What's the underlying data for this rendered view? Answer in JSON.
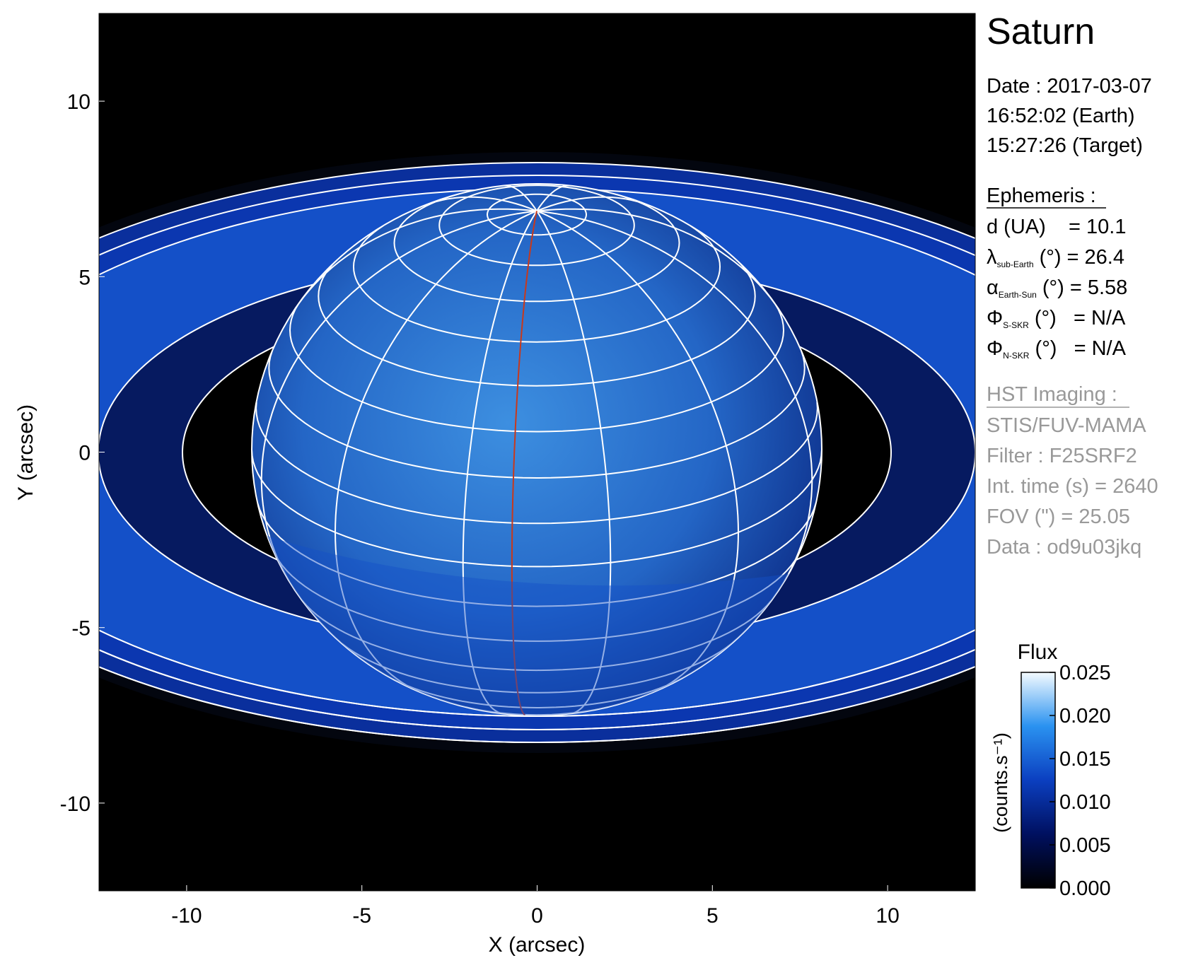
{
  "chart_data": {
    "type": "image",
    "xlabel": "X (arcsec)",
    "ylabel": "Y (arcsec)",
    "xlim": [
      -12.5,
      12.5
    ],
    "ylim": [
      -12.5,
      12.5
    ],
    "xticks": [
      -10,
      -5,
      0,
      5,
      10
    ],
    "yticks": [
      -10,
      -5,
      0,
      5,
      10
    ],
    "colorbar": {
      "title": "Flux",
      "label": "(counts.s⁻¹)",
      "clim": [
        0,
        0.025
      ],
      "ticks": [
        {
          "value": 0,
          "label": "0.000"
        },
        {
          "value": 0.005,
          "label": "0.005"
        },
        {
          "value": 0.01,
          "label": "0.010"
        },
        {
          "value": 0.015,
          "label": "0.015"
        },
        {
          "value": 0.02,
          "label": "0.020"
        },
        {
          "value": 0.025,
          "label": "0.025"
        }
      ]
    },
    "info": {
      "title": "Saturn",
      "date": [
        "Date : 2017-03-07",
        "16:52:02 (Earth)",
        "15:27:26 (Target)"
      ],
      "ephemeris": {
        "heading": "Ephemeris :",
        "lines": [
          {
            "text": "d (UA)    = 10.1"
          },
          {
            "symbol": "λ",
            "sub": "sub-Earth",
            "text": " (°) = 26.4"
          },
          {
            "symbol": "α",
            "sub": "Earth-Sun",
            "text": " (°) = 5.58"
          },
          {
            "symbol": "Φ",
            "sub": "S-SKR",
            "text": " (°)   = N/A"
          },
          {
            "symbol": "Φ",
            "sub": "N-SKR",
            "text": " (°)   = N/A"
          }
        ]
      },
      "hst": {
        "heading": "HST Imaging :",
        "lines": [
          "STIS/FUV-MAMA",
          "Filter : F25SRF2",
          "Int. time (s) = 2640",
          "FOV (\") = 25.05",
          "Data : od9u03jkq"
        ]
      }
    }
  }
}
